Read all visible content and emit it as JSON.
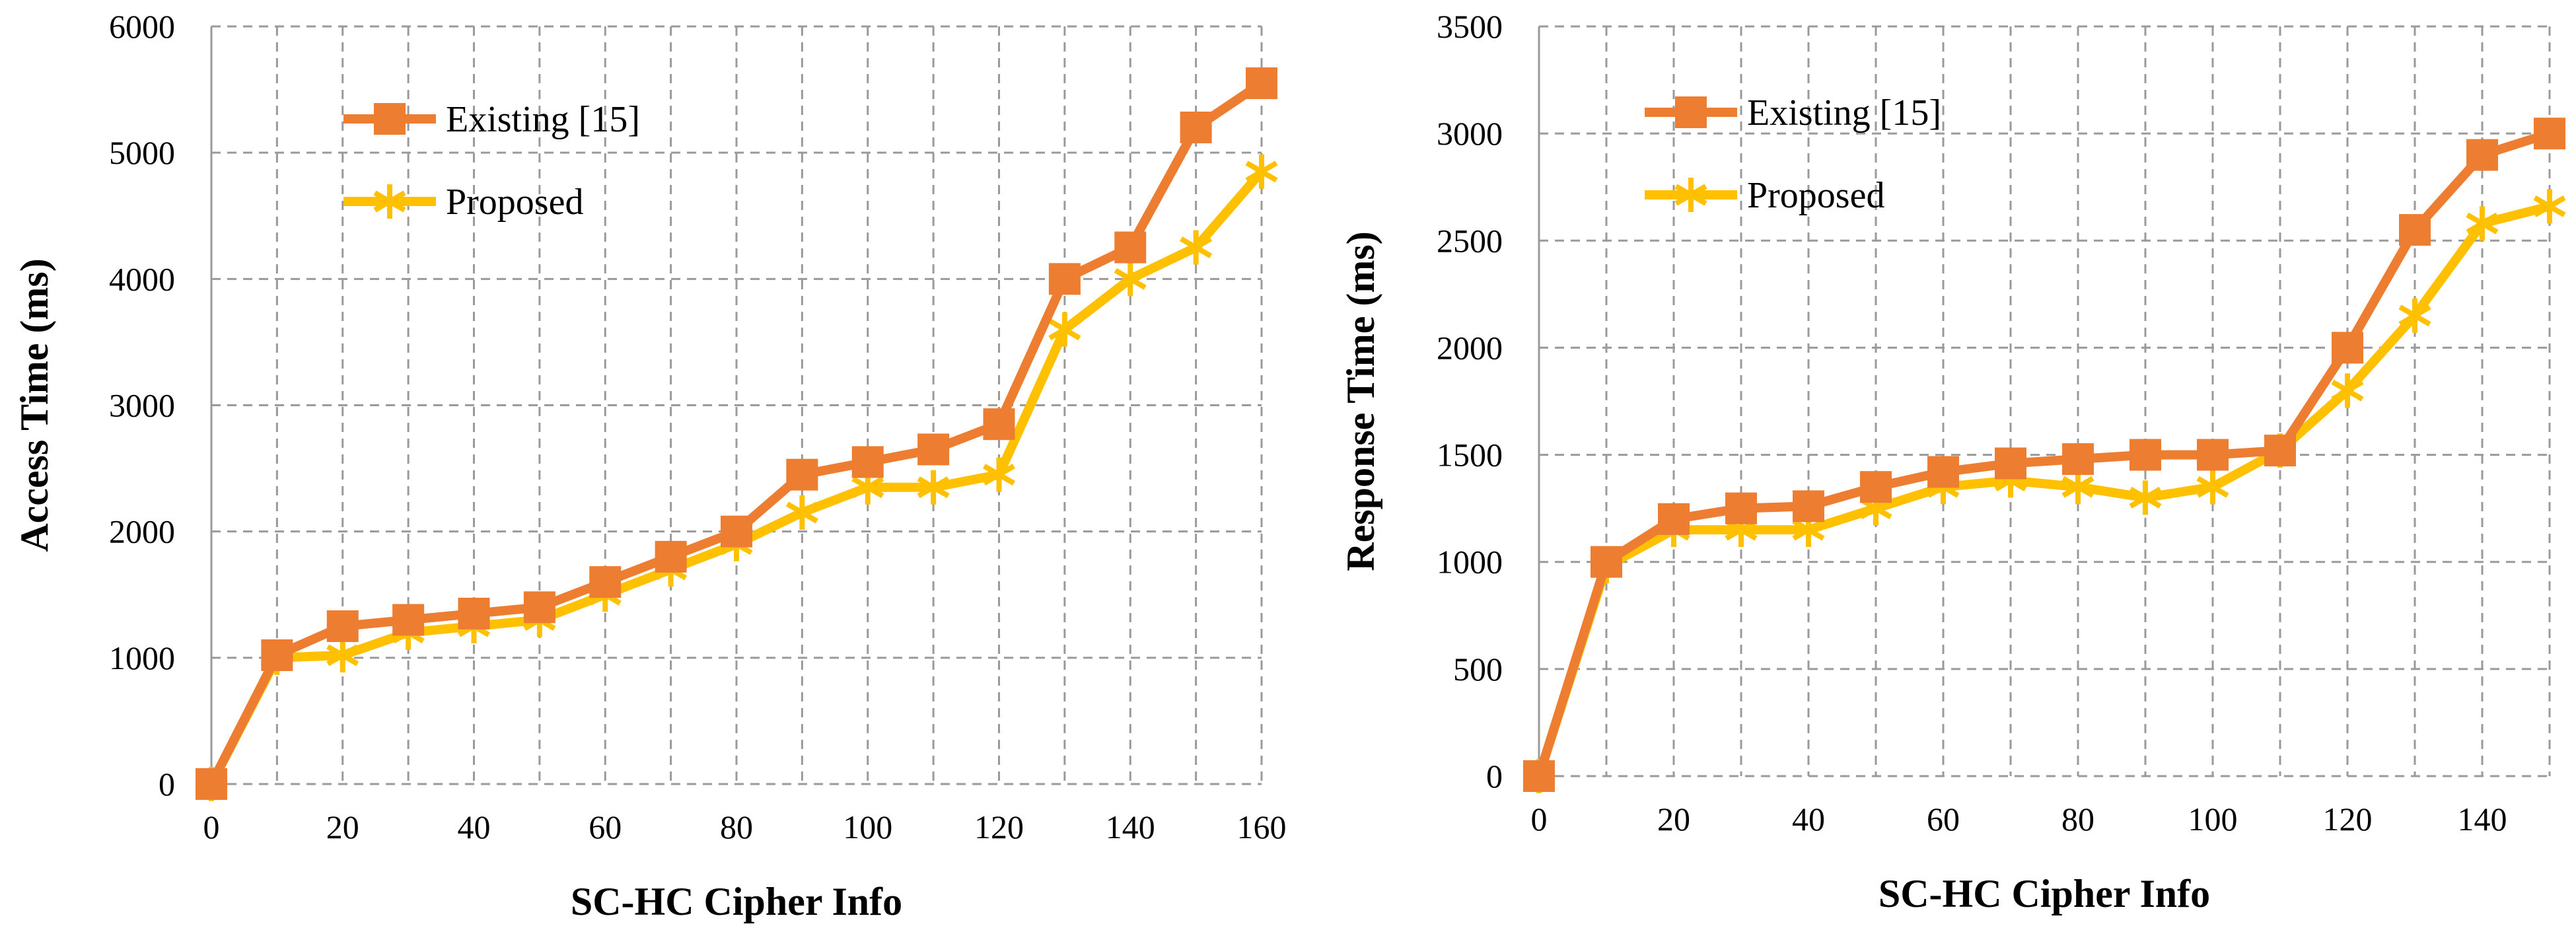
{
  "chart_data": [
    {
      "type": "line",
      "title": "",
      "xlabel": "SC-HC Cipher Info",
      "ylabel": "Access Time  (ms)",
      "xlim": [
        0,
        160
      ],
      "ylim": [
        0,
        6000
      ],
      "xticks": [
        0,
        20,
        40,
        60,
        80,
        100,
        120,
        140,
        160
      ],
      "yticks": [
        0,
        1000,
        2000,
        3000,
        4000,
        5000,
        6000
      ],
      "grid": true,
      "legend_position": "top-left",
      "x": [
        0,
        10,
        20,
        30,
        40,
        50,
        60,
        70,
        80,
        90,
        100,
        110,
        120,
        130,
        140,
        150,
        160
      ],
      "series": [
        {
          "name": "Existing [15]",
          "color": "#ED7D31",
          "marker": "square",
          "values": [
            0,
            1020,
            1250,
            1300,
            1350,
            1400,
            1600,
            1800,
            2000,
            2450,
            2550,
            2650,
            2850,
            4000,
            4250,
            5200,
            5550
          ]
        },
        {
          "name": "Proposed",
          "color": "#FFC000",
          "marker": "star",
          "values": [
            0,
            1000,
            1020,
            1200,
            1250,
            1300,
            1500,
            1700,
            1900,
            2150,
            2350,
            2350,
            2450,
            3600,
            4000,
            4250,
            4850
          ]
        }
      ]
    },
    {
      "type": "line",
      "title": "",
      "xlabel": "SC-HC Cipher Info",
      "ylabel": "Response Time (ms)",
      "xlim": [
        0,
        150
      ],
      "ylim": [
        0,
        3500
      ],
      "xticks": [
        0,
        20,
        40,
        60,
        80,
        100,
        120,
        140
      ],
      "yticks": [
        0,
        500,
        1000,
        1500,
        2000,
        2500,
        3000,
        3500
      ],
      "grid": true,
      "legend_position": "top-left",
      "x": [
        0,
        10,
        20,
        30,
        40,
        50,
        60,
        70,
        80,
        90,
        100,
        110,
        120,
        130,
        140,
        150
      ],
      "series": [
        {
          "name": "Existing [15]",
          "color": "#ED7D31",
          "marker": "square",
          "values": [
            0,
            1000,
            1200,
            1250,
            1260,
            1350,
            1420,
            1460,
            1480,
            1500,
            1500,
            1520,
            2000,
            2550,
            2900,
            3000
          ]
        },
        {
          "name": "Proposed",
          "color": "#FFC000",
          "marker": "star",
          "values": [
            0,
            980,
            1150,
            1150,
            1150,
            1250,
            1350,
            1380,
            1350,
            1300,
            1350,
            1520,
            1800,
            2150,
            2580,
            2660
          ]
        }
      ]
    }
  ]
}
